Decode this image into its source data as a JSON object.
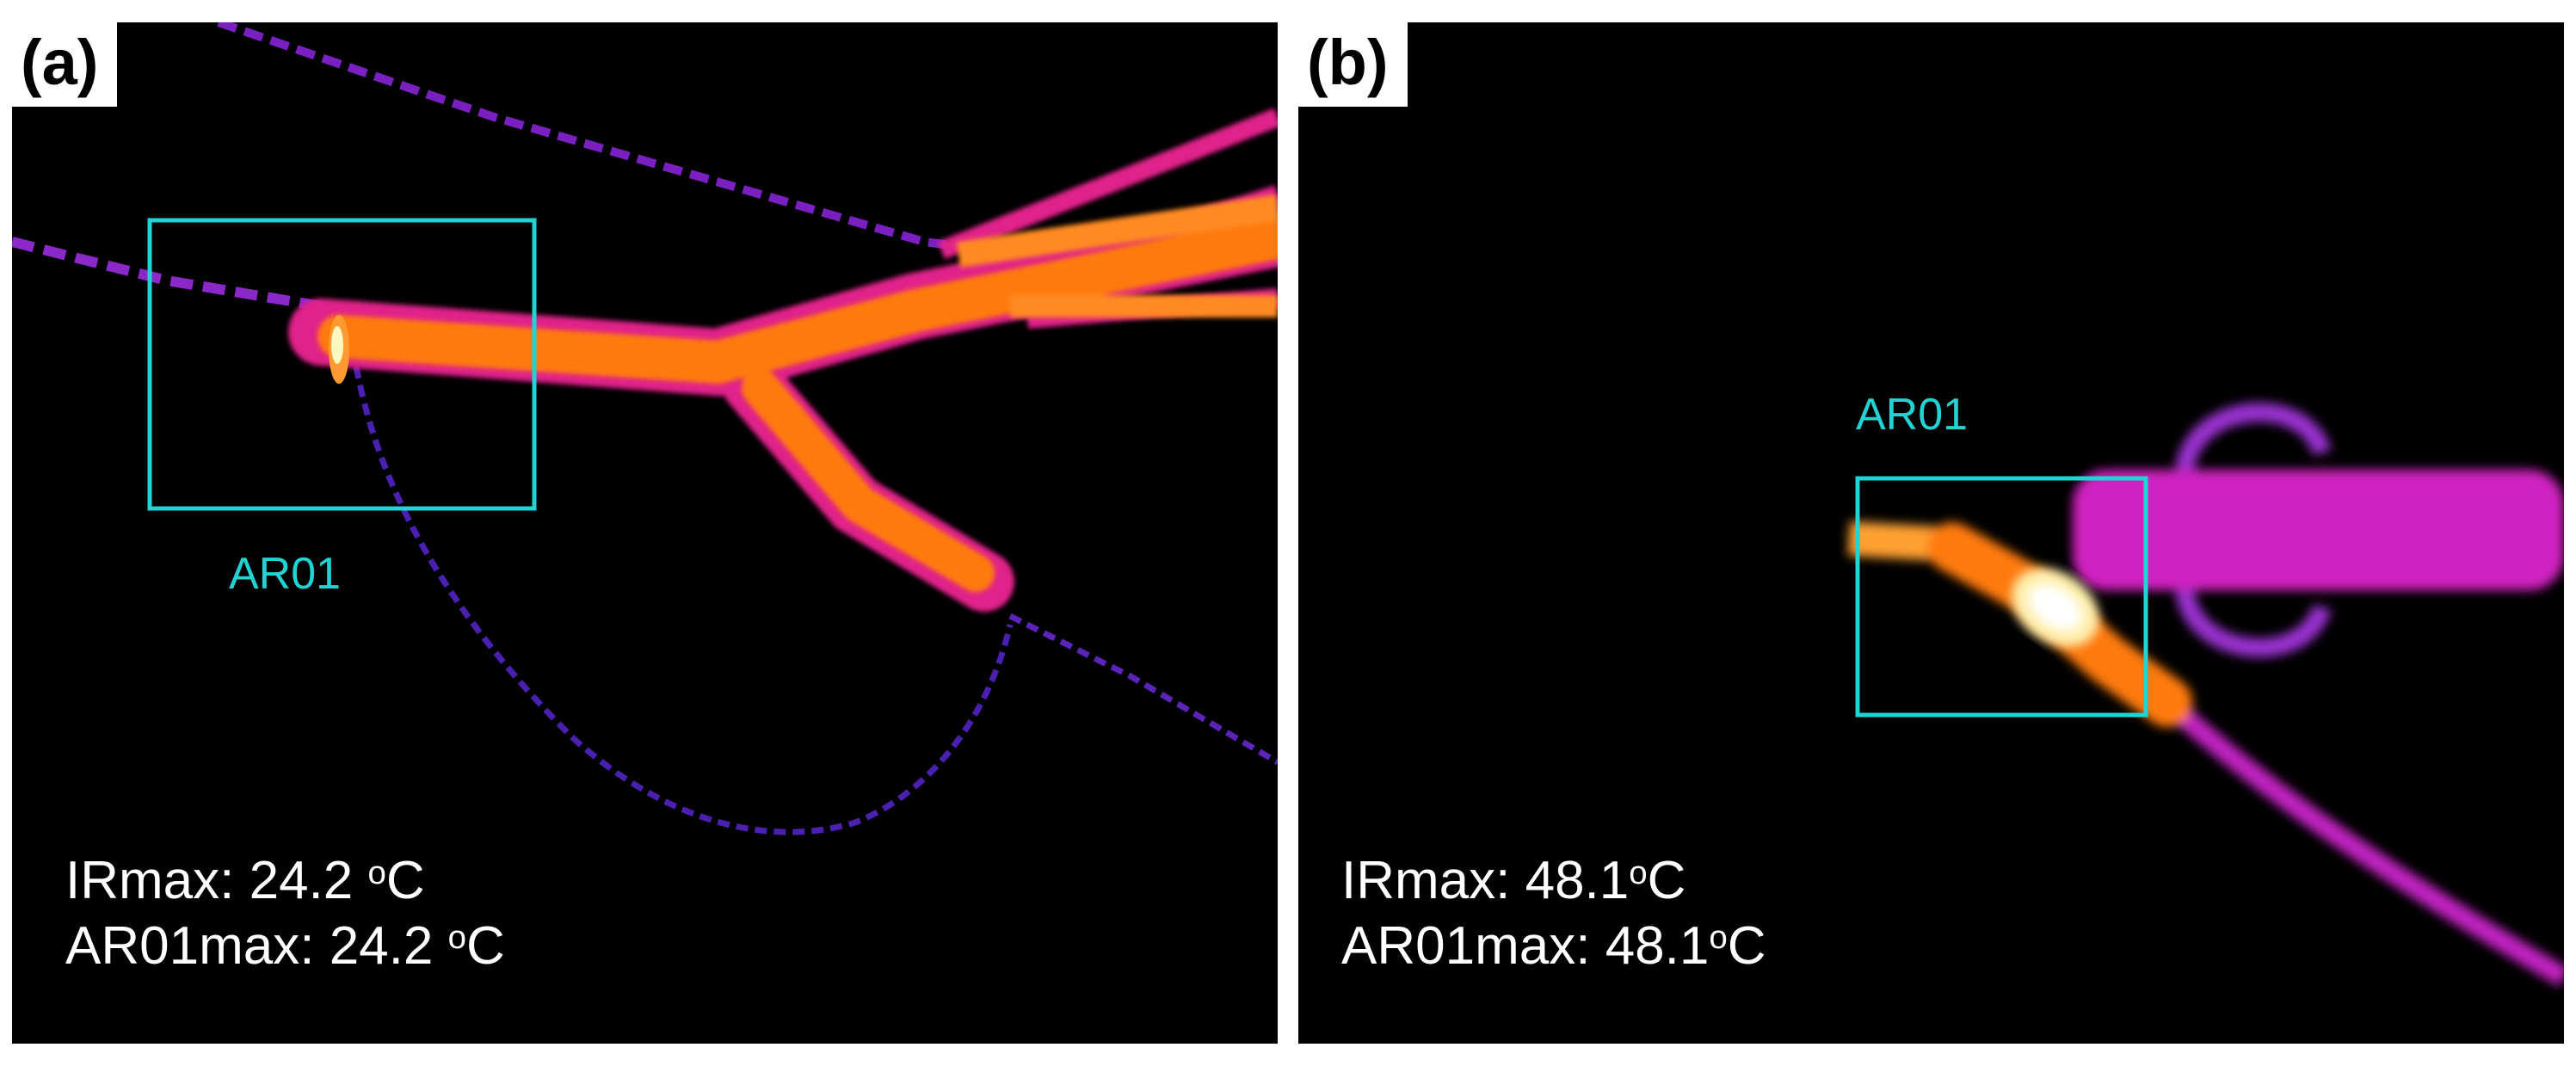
{
  "panels": [
    {
      "label": "(a)",
      "roi_label": "AR01",
      "readouts": [
        {
          "name": "IRmax:",
          "value": "24.2",
          "degree": "o",
          "unit": "C"
        },
        {
          "name": "AR01max:",
          "value": "24.2",
          "degree": "o",
          "unit": "C"
        }
      ],
      "colors": {
        "roi_box": "#22d3d3",
        "hot": "#ff7a10",
        "warm": "#e0208a",
        "cool": "#7a20c0",
        "peak": "#fff8c0"
      }
    },
    {
      "label": "(b)",
      "roi_label": "AR01",
      "readouts": [
        {
          "name": "IRmax:",
          "value": "48.1",
          "degree": "o",
          "unit": "C"
        },
        {
          "name": "AR01max:",
          "value": "48.1",
          "degree": "o",
          "unit": "C"
        }
      ],
      "colors": {
        "roi_box": "#22d3d3",
        "hot": "#ff7a10",
        "warm": "#e0208a",
        "cool": "#9a30d0",
        "peak": "#ffffff"
      }
    }
  ]
}
